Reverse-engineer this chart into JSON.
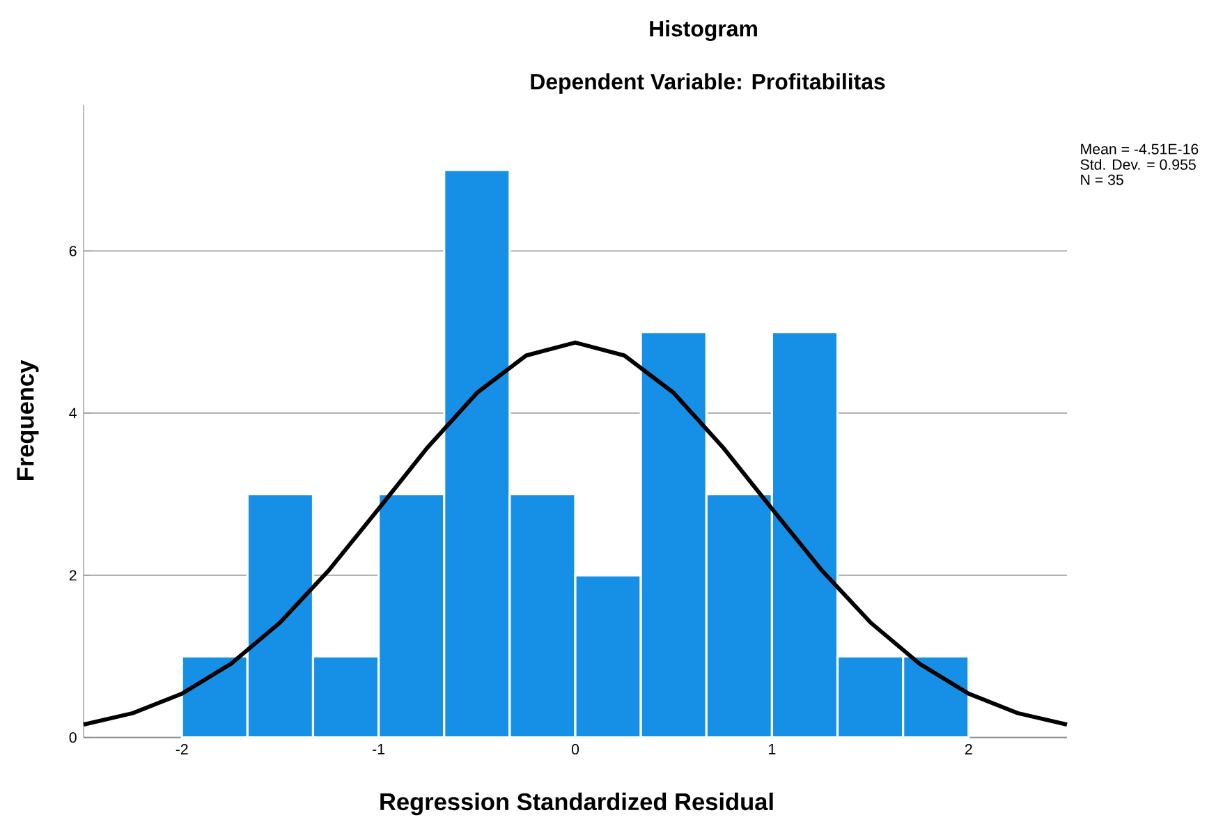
{
  "chart_data": {
    "type": "histogram",
    "title": "Histogram",
    "subtitle": "Dependent Variable: Profitabilitas",
    "xlabel": "Regression Standardized Residual",
    "ylabel": "Frequency",
    "bins": [
      -2,
      -1.6667,
      -1.3333,
      -1,
      -0.6667,
      -0.3333,
      0,
      0.3333,
      0.6667,
      1,
      1.3333,
      1.6667,
      2
    ],
    "values": [
      1,
      3,
      1,
      3,
      7,
      3,
      2,
      5,
      3,
      5,
      1,
      1
    ],
    "color": "#1590e6",
    "series": [
      {
        "type": "line",
        "color": "#000000",
        "x": [
          -2.5,
          -2.25,
          -2,
          -1.75,
          -1.5,
          -1.25,
          -1,
          -0.75,
          -0.5,
          -0.25,
          0,
          0.25,
          0.5,
          0.75,
          1,
          1.25,
          1.5,
          1.75,
          2,
          2.25,
          2.5
        ],
        "values": [
          0.16,
          0.3,
          0.54,
          0.91,
          1.42,
          2.07,
          2.82,
          3.58,
          4.25,
          4.71,
          4.87,
          4.71,
          4.25,
          3.58,
          2.82,
          2.07,
          1.42,
          0.91,
          0.54,
          0.3,
          0.16
        ]
      }
    ],
    "xlim": [
      -2.5,
      2.5
    ],
    "ylim": [
      0,
      7.8
    ],
    "xticks": [
      -2,
      -1,
      0,
      1,
      2
    ],
    "yticks": [
      0,
      2,
      4,
      6
    ],
    "grid": "y",
    "annotations": [
      "Mean = -4.51E-16",
      "Std. Dev. = 0.955",
      "N = 35"
    ]
  }
}
